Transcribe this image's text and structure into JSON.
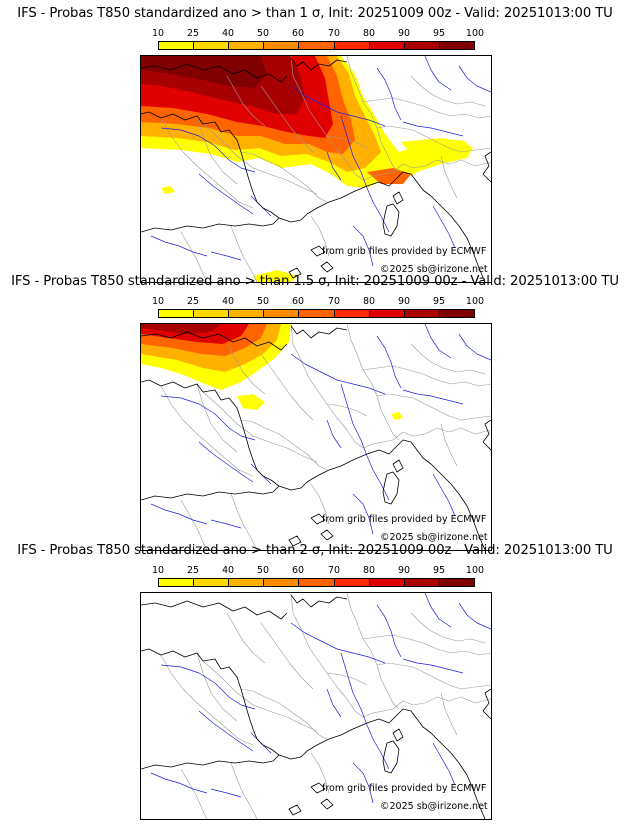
{
  "panels": [
    {
      "title": "IFS - Probas T850  standardized ano > than 1 σ, Init: 20251009 00z - Valid: 20251013:00 TU",
      "credit_source": "from grib files provided by ECMWF",
      "credit_copyright": "©2025 sb@irizone.net",
      "field_extent": "large"
    },
    {
      "title": "IFS - Probas T850  standardized ano > than 1.5 σ, Init: 20251009 00z - Valid: 20251013:00 TU",
      "credit_source": "from grib files provided by ECMWF",
      "credit_copyright": "©2025 sb@irizone.net",
      "field_extent": "medium"
    },
    {
      "title": "IFS - Probas T850  standardized ano > than 2 σ, Init: 20251009 00z - Valid: 20251013:00 TU",
      "credit_source": "from grib files provided by ECMWF",
      "credit_copyright": "©2025 sb@irizone.net",
      "field_extent": "none"
    }
  ],
  "legend": {
    "ticks": [
      "10",
      "25",
      "40",
      "50",
      "60",
      "70",
      "80",
      "90",
      "95",
      "100"
    ],
    "colors": [
      "#ffff00",
      "#ffd800",
      "#ffb000",
      "#ff8c00",
      "#ff6400",
      "#ff2a00",
      "#e00000",
      "#a80000",
      "#800000"
    ]
  },
  "map_colors": {
    "coast": "#000000",
    "borders": "#9a9a9a",
    "rivers": "#2020d8"
  }
}
